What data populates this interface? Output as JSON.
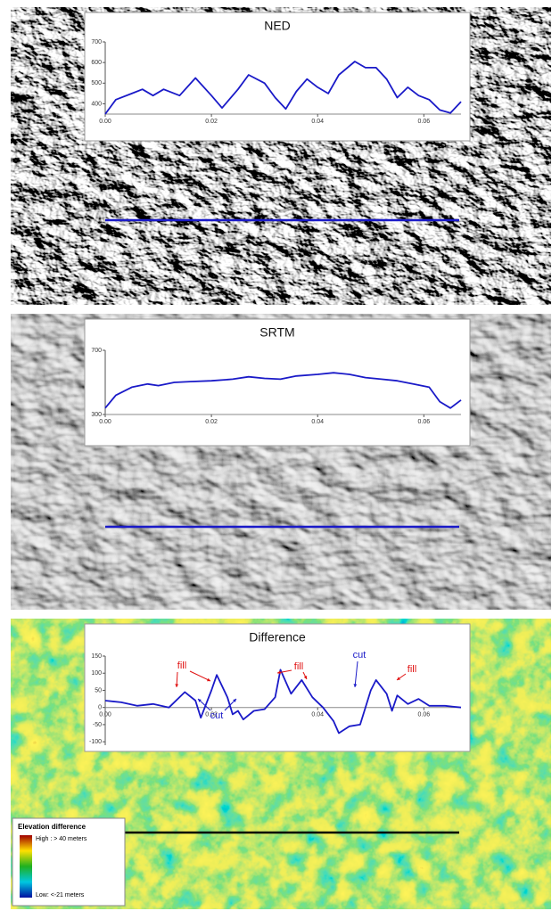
{
  "chart_data": [
    {
      "type": "line",
      "title": "NED",
      "color": "#1a1ac8",
      "x": [
        0,
        0.002,
        0.005,
        0.007,
        0.009,
        0.011,
        0.014,
        0.017,
        0.02,
        0.022,
        0.025,
        0.027,
        0.03,
        0.032,
        0.034,
        0.036,
        0.038,
        0.04,
        0.042,
        0.044,
        0.047,
        0.049,
        0.051,
        0.053,
        0.055,
        0.057,
        0.059,
        0.061,
        0.063,
        0.065,
        0.067
      ],
      "values": [
        350,
        420,
        450,
        470,
        440,
        470,
        440,
        525,
        440,
        380,
        470,
        540,
        500,
        430,
        375,
        460,
        520,
        480,
        450,
        540,
        605,
        575,
        575,
        520,
        430,
        480,
        440,
        420,
        370,
        355,
        410
      ],
      "xlim": [
        0,
        0.067
      ],
      "xticks": [
        {
          "value": 0,
          "label": "0.00"
        },
        {
          "value": 0.02,
          "label": "0.02"
        },
        {
          "value": 0.04,
          "label": "0.04"
        },
        {
          "value": 0.06,
          "label": "0.06"
        }
      ],
      "ylim": [
        350,
        700
      ],
      "yticks": [
        400,
        500,
        600,
        700
      ]
    },
    {
      "type": "line",
      "title": "SRTM",
      "color": "#1a1ac8",
      "x": [
        0,
        0.002,
        0.005,
        0.008,
        0.01,
        0.013,
        0.016,
        0.02,
        0.024,
        0.027,
        0.03,
        0.033,
        0.036,
        0.04,
        0.043,
        0.046,
        0.049,
        0.052,
        0.055,
        0.058,
        0.061,
        0.063,
        0.065,
        0.067
      ],
      "values": [
        340,
        420,
        470,
        490,
        480,
        500,
        505,
        510,
        520,
        535,
        525,
        520,
        540,
        550,
        560,
        550,
        530,
        520,
        510,
        490,
        470,
        380,
        340,
        390
      ],
      "xlim": [
        0,
        0.067
      ],
      "xticks": [
        {
          "value": 0,
          "label": "0.00"
        },
        {
          "value": 0.02,
          "label": "0.02"
        },
        {
          "value": 0.04,
          "label": "0.04"
        },
        {
          "value": 0.06,
          "label": "0.06"
        }
      ],
      "ylim": [
        300,
        700
      ],
      "yticks": [
        300,
        700
      ]
    },
    {
      "type": "line",
      "title": "Difference",
      "color": "#1a1ac8",
      "x": [
        0,
        0.003,
        0.006,
        0.009,
        0.012,
        0.015,
        0.017,
        0.018,
        0.02,
        0.021,
        0.023,
        0.024,
        0.025,
        0.026,
        0.028,
        0.03,
        0.032,
        0.033,
        0.035,
        0.037,
        0.039,
        0.041,
        0.043,
        0.044,
        0.046,
        0.048,
        0.05,
        0.051,
        0.053,
        0.054,
        0.055,
        0.057,
        0.059,
        0.061,
        0.064,
        0.067
      ],
      "values": [
        20,
        15,
        5,
        10,
        0,
        45,
        20,
        -30,
        50,
        95,
        30,
        -20,
        -10,
        -35,
        -10,
        -5,
        30,
        110,
        40,
        80,
        30,
        0,
        -40,
        -75,
        -55,
        -50,
        50,
        80,
        40,
        -10,
        35,
        10,
        25,
        5,
        5,
        0
      ],
      "xlim": [
        0,
        0.067
      ],
      "xticks": [
        {
          "value": 0,
          "label": "0.00"
        },
        {
          "value": 0.02,
          "label": "0.02"
        },
        {
          "value": 0.04,
          "label": "0.04"
        },
        {
          "value": 0.06,
          "label": "0.06"
        }
      ],
      "ylim": [
        -110,
        150
      ],
      "yticks": [
        -100,
        -50,
        0,
        50,
        100,
        150
      ],
      "annotations": [
        {
          "text": "fill",
          "color": "#e01010"
        },
        {
          "text": "fill",
          "color": "#e01010"
        },
        {
          "text": "fill",
          "color": "#e01010"
        },
        {
          "text": "cut",
          "color": "#1a1ac8"
        },
        {
          "text": "cut",
          "color": "#1a1ac8"
        }
      ]
    }
  ],
  "map_legend": {
    "title": "Elevation difference",
    "high": "High : > 40 meters",
    "low": "Low: <-21 meters"
  }
}
